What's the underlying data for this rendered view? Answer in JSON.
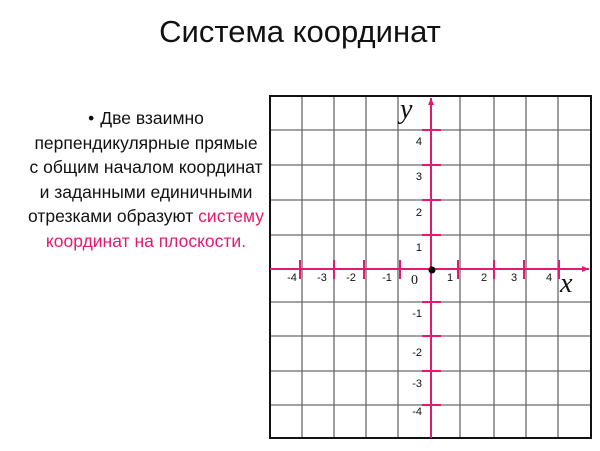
{
  "title": "Система координат",
  "bullet": {
    "text": "Две взаимно перпендикулярные прямые с общим началом координат и заданными единичными отрезками образуют",
    "highlight": "систему координат на плоскости."
  },
  "plane": {
    "x_axis_label": "x",
    "y_axis_label": "y",
    "origin_label": "0",
    "x_ticks": [
      "-4",
      "-3",
      "-2",
      "-1",
      "1",
      "2",
      "3",
      "4"
    ],
    "y_ticks": [
      "4",
      "3",
      "2",
      "1",
      "-1",
      "-2",
      "-3",
      "-4"
    ],
    "axis_color": "#e6196e",
    "grid_color": "#6a6a6a"
  }
}
